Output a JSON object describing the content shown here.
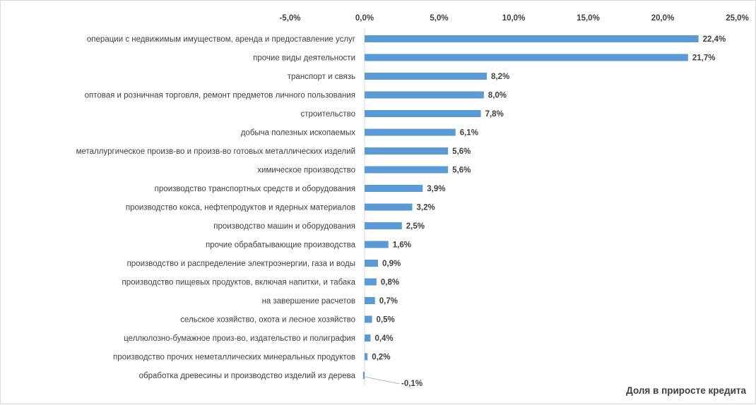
{
  "chart_data": {
    "type": "bar",
    "orientation": "horizontal",
    "categories": [
      "операции с недвижимым имуществом, аренда и предоставление услуг",
      "прочие виды деятельности",
      "транспорт и связь",
      "оптовая и розничная торговля, ремонт предметов личного пользования",
      "строительство",
      "добыча полезных ископаемых",
      "металлургическое произв-во и произв-во готовых металлических изделий",
      "химическое производство",
      "производство транспортных средств и оборудования",
      "производство кокса, нефтепродуктов и ядерных материалов",
      "производство машин и оборудования",
      "прочие обрабатывающие производства",
      "производство и распределение электроэнергии, газа и воды",
      "производство пищевых продуктов, включая напитки, и табака",
      "на завершение расчетов",
      "сельское хозяйство, охота и лесное хозяйство",
      "целлюлозно-бумажное произ-во, издательство и полиграфия",
      "производство прочих неметаллических минеральных продуктов",
      "обработка древесины и производство изделий из дерева"
    ],
    "series": [
      {
        "name": "Доля в приросте кредита",
        "values": [
          22.4,
          21.7,
          8.2,
          8.0,
          7.8,
          6.1,
          5.6,
          5.6,
          3.9,
          3.2,
          2.5,
          1.6,
          0.9,
          0.8,
          0.7,
          0.5,
          0.4,
          0.2,
          -0.1
        ],
        "labels": [
          "22,4%",
          "21,7%",
          "8,2%",
          "8,0%",
          "7,8%",
          "6,1%",
          "5,6%",
          "5,6%",
          "3,9%",
          "3,2%",
          "2,5%",
          "1,6%",
          "0,9%",
          "0,8%",
          "0,7%",
          "0,5%",
          "0,4%",
          "0,2%",
          "-0,1%"
        ]
      }
    ],
    "x_ticks": [
      "-5,0%",
      "0,0%",
      "5,0%",
      "10,0%",
      "15,0%",
      "20,0%",
      "25,0%"
    ],
    "x_tick_values": [
      -5,
      0,
      5,
      10,
      15,
      20,
      25
    ],
    "xlim": [
      -5,
      25
    ],
    "axis_position": "top",
    "grid": false,
    "legend": "bottom-right",
    "bar_color": "#5b9bd5"
  }
}
